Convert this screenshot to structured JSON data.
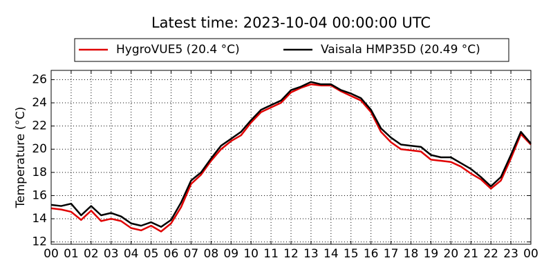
{
  "chart_data": {
    "type": "line",
    "title": "Latest time: 2023-10-04 00:00:00 UTC",
    "ylabel": "Temperature (°C)",
    "x": [
      0,
      0.5,
      1,
      1.5,
      2,
      2.5,
      3,
      3.5,
      4,
      4.5,
      5,
      5.5,
      6,
      6.5,
      7,
      7.5,
      8,
      8.5,
      9,
      9.5,
      10,
      10.5,
      11,
      11.5,
      12,
      12.5,
      13,
      13.5,
      14,
      14.5,
      15,
      15.5,
      16,
      16.5,
      17,
      17.5,
      18,
      18.5,
      19,
      19.5,
      20,
      20.5,
      21,
      21.5,
      22,
      22.5,
      23,
      23.5,
      24
    ],
    "series": [
      {
        "name": "HygroVUE5 (20.4 °C)",
        "color": "#e00000",
        "values": [
          14.9,
          14.8,
          14.6,
          13.9,
          14.7,
          13.8,
          14.0,
          13.8,
          13.2,
          13.0,
          13.4,
          12.9,
          13.6,
          15.0,
          17.0,
          17.8,
          19.0,
          20.0,
          20.7,
          21.2,
          22.3,
          23.2,
          23.6,
          24.0,
          24.9,
          25.3,
          25.6,
          25.5,
          25.5,
          25.0,
          24.6,
          24.2,
          23.2,
          21.5,
          20.6,
          20.0,
          19.9,
          19.8,
          19.1,
          19.0,
          18.9,
          18.5,
          17.9,
          17.4,
          16.6,
          17.3,
          19.2,
          21.3,
          20.4
        ]
      },
      {
        "name": "Vaisala HMP35D (20.49 °C)",
        "color": "#000000",
        "values": [
          15.2,
          15.1,
          15.3,
          14.3,
          15.1,
          14.3,
          14.5,
          14.2,
          13.6,
          13.4,
          13.7,
          13.3,
          13.9,
          15.4,
          17.3,
          18.0,
          19.2,
          20.3,
          20.9,
          21.5,
          22.5,
          23.4,
          23.8,
          24.2,
          25.1,
          25.4,
          25.8,
          25.6,
          25.6,
          25.1,
          24.8,
          24.4,
          23.4,
          21.8,
          21.0,
          20.4,
          20.3,
          20.2,
          19.5,
          19.3,
          19.3,
          18.8,
          18.3,
          17.6,
          16.8,
          17.6,
          19.5,
          21.5,
          20.49
        ]
      }
    ],
    "xlim": [
      0,
      24
    ],
    "xticks": [
      {
        "value": 0,
        "label": "00"
      },
      {
        "value": 1,
        "label": "01"
      },
      {
        "value": 2,
        "label": "02"
      },
      {
        "value": 3,
        "label": "03"
      },
      {
        "value": 4,
        "label": "04"
      },
      {
        "value": 5,
        "label": "05"
      },
      {
        "value": 6,
        "label": "06"
      },
      {
        "value": 7,
        "label": "07"
      },
      {
        "value": 8,
        "label": "08"
      },
      {
        "value": 9,
        "label": "09"
      },
      {
        "value": 10,
        "label": "10"
      },
      {
        "value": 11,
        "label": "11"
      },
      {
        "value": 12,
        "label": "12"
      },
      {
        "value": 13,
        "label": "13"
      },
      {
        "value": 14,
        "label": "14"
      },
      {
        "value": 15,
        "label": "15"
      },
      {
        "value": 16,
        "label": "16"
      },
      {
        "value": 17,
        "label": "17"
      },
      {
        "value": 18,
        "label": "18"
      },
      {
        "value": 19,
        "label": "19"
      },
      {
        "value": 20,
        "label": "20"
      },
      {
        "value": 21,
        "label": "21"
      },
      {
        "value": 22,
        "label": "22"
      },
      {
        "value": 23,
        "label": "23"
      },
      {
        "value": 24,
        "label": "00"
      }
    ],
    "ylim": [
      11.8,
      26.8
    ],
    "yticks": [
      12,
      14,
      16,
      18,
      20,
      22,
      24,
      26
    ],
    "grid": true,
    "legend": "top"
  }
}
